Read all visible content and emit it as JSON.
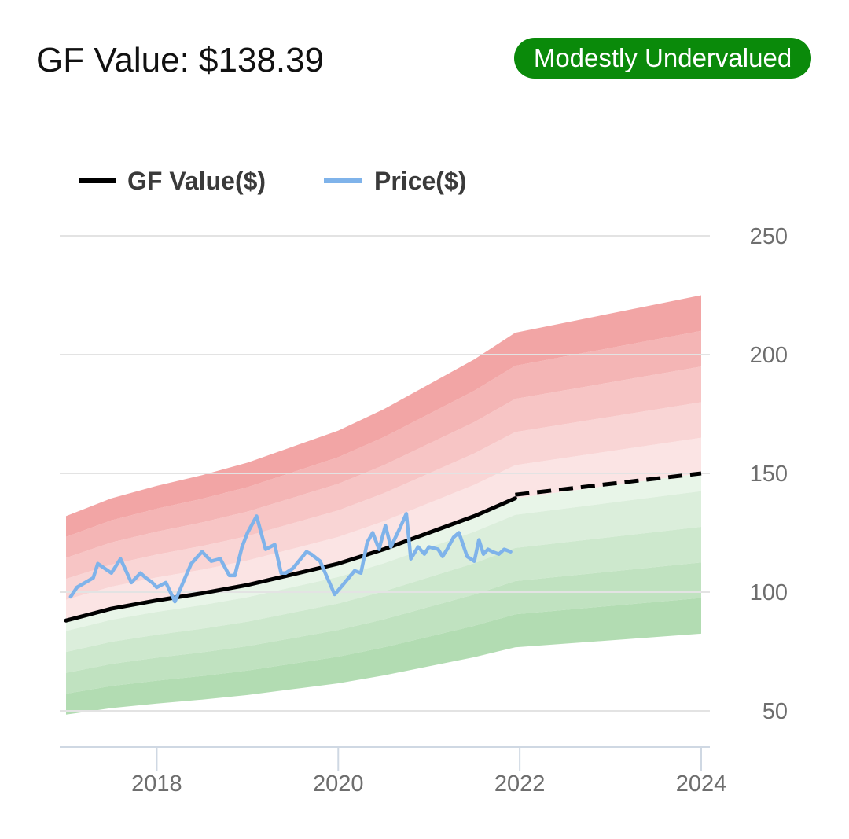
{
  "header": {
    "title": "GF Value: $138.39",
    "badge": "Modestly Undervalued",
    "badge_color": "#0a8a0a"
  },
  "chart_data": {
    "type": "area",
    "legend": [
      "GF Value($)",
      "Price($)"
    ],
    "legend_position": "top-left",
    "x_ticks": [
      "2018",
      "2020",
      "2022",
      "2024"
    ],
    "y_ticks": [
      "50",
      "100",
      "150",
      "200",
      "250"
    ],
    "xlim": [
      2017.0,
      2024.0
    ],
    "ylim": [
      35,
      250
    ],
    "grid": true,
    "colors": {
      "gf_value": "#000000",
      "price": "#7fb3ea",
      "over_band": "#f2a5a5",
      "under_band": "#b2dcb2",
      "grid": "#e3e3e3"
    },
    "gf_value": {
      "x": [
        2017.0,
        2017.5,
        2018.0,
        2018.5,
        2019.0,
        2019.5,
        2020.0,
        2020.5,
        2021.0,
        2021.5,
        2021.95
      ],
      "y": [
        88,
        93,
        96.5,
        99.5,
        103,
        107.5,
        112,
        118,
        125,
        132,
        139.5
      ]
    },
    "gf_value_projected": {
      "x": [
        2021.95,
        2024.0
      ],
      "y": [
        141,
        150
      ]
    },
    "band_multipliers": [
      0.55,
      0.65,
      0.75,
      0.85,
      0.95,
      1.1,
      1.2,
      1.3,
      1.4,
      1.5
    ],
    "price": {
      "x": [
        2017.05,
        2017.12,
        2017.3,
        2017.35,
        2017.5,
        2017.6,
        2017.72,
        2017.82,
        2017.88,
        2017.95,
        2018.0,
        2018.1,
        2018.2,
        2018.3,
        2018.38,
        2018.5,
        2018.6,
        2018.7,
        2018.8,
        2018.86,
        2018.94,
        2019.0,
        2019.1,
        2019.2,
        2019.25,
        2019.3,
        2019.37,
        2019.42,
        2019.5,
        2019.65,
        2019.7,
        2019.8,
        2019.88,
        2019.96,
        2020.05,
        2020.18,
        2020.25,
        2020.32,
        2020.38,
        2020.45,
        2020.52,
        2020.58,
        2020.68,
        2020.75,
        2020.8,
        2020.88,
        2020.95,
        2021.0,
        2021.1,
        2021.15,
        2021.2,
        2021.27,
        2021.33,
        2021.42,
        2021.5,
        2021.55,
        2021.6,
        2021.65,
        2021.7,
        2021.77,
        2021.83,
        2021.9
      ],
      "y": [
        98,
        102,
        106,
        112,
        108,
        114,
        104,
        108,
        106,
        104,
        102,
        104,
        96,
        105,
        112,
        117,
        113,
        114,
        107,
        107,
        119,
        125,
        132,
        118,
        119,
        120,
        108,
        108,
        110,
        117,
        116,
        113,
        106,
        99,
        103,
        109,
        108,
        121,
        125,
        118,
        128,
        119,
        127,
        133,
        114,
        119,
        116,
        119,
        118,
        115,
        118,
        123,
        125,
        115,
        113,
        122,
        116,
        118,
        117,
        116,
        118,
        117
      ]
    }
  }
}
